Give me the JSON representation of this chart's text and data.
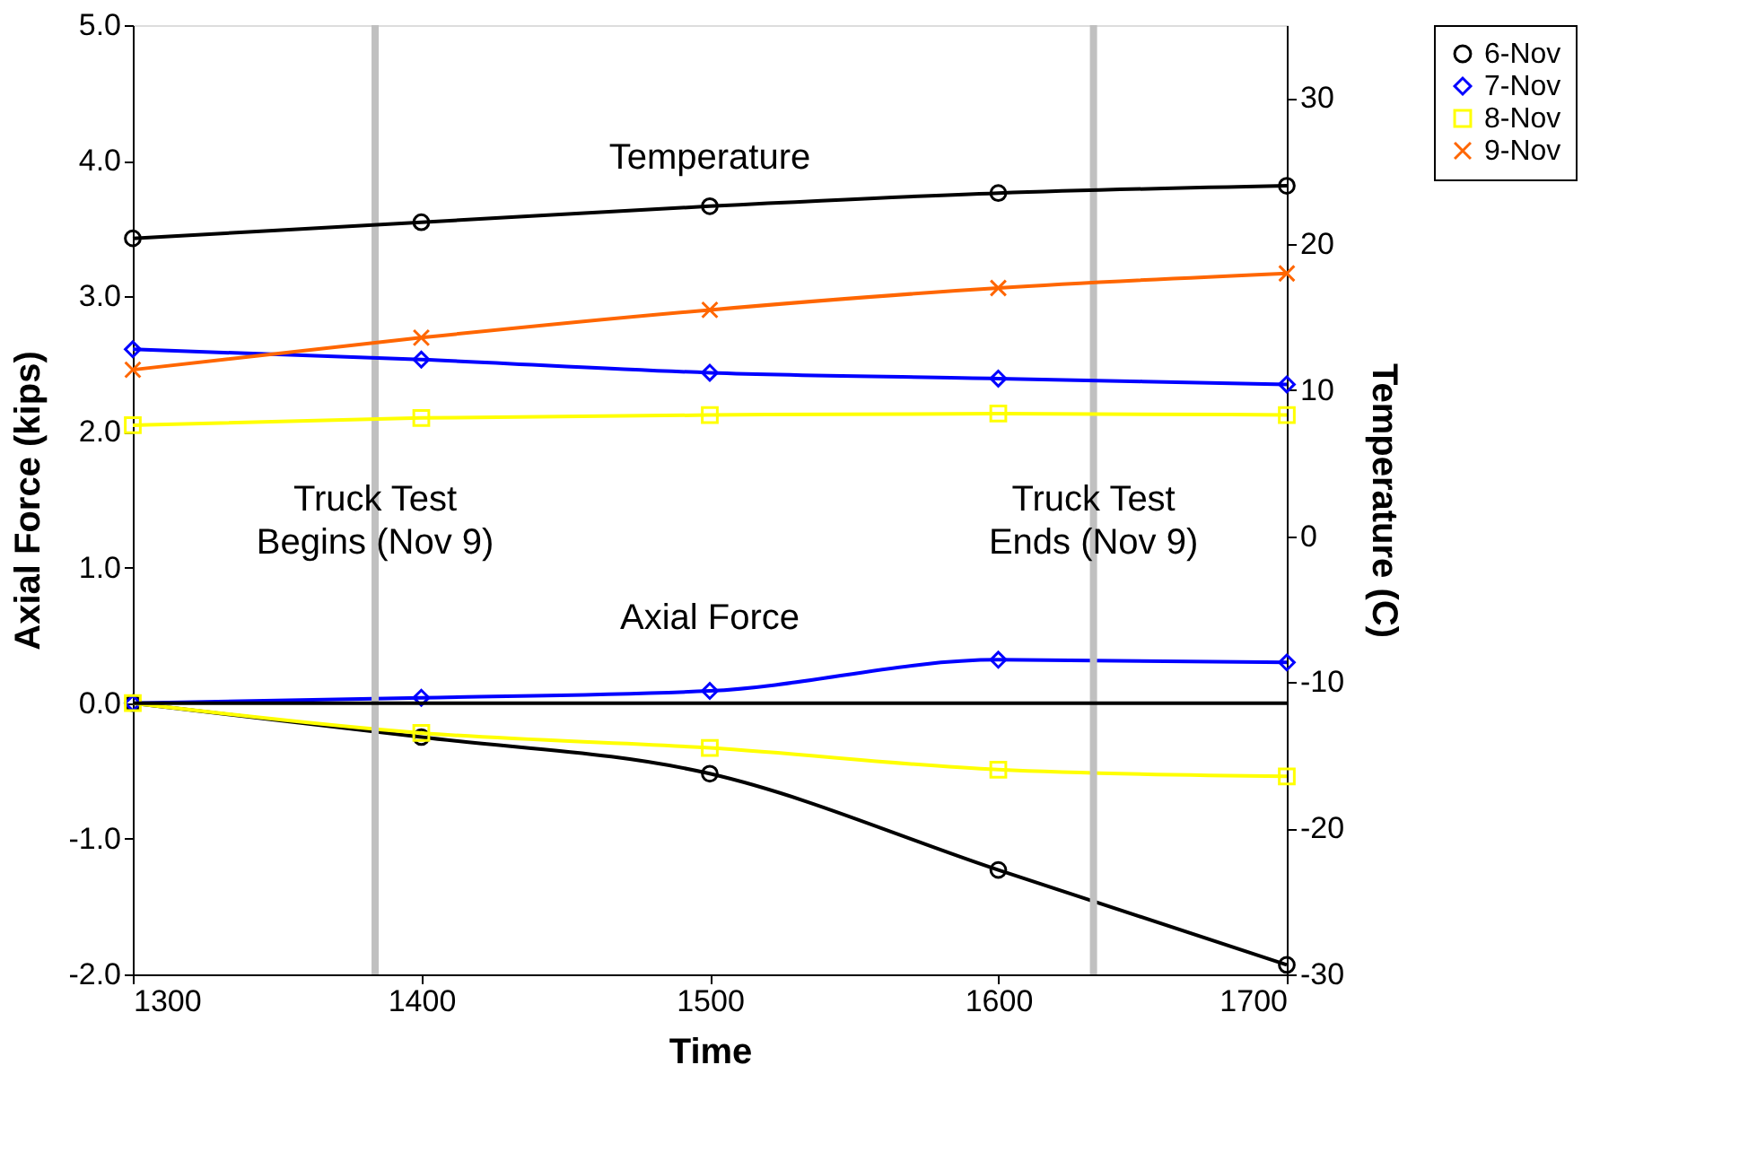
{
  "chart_data": {
    "type": "line",
    "xlabel": "Time",
    "ylabel": "Axial Force (kips)",
    "y2label": "Temperature (C)",
    "x": [
      1300,
      1400,
      1500,
      1600,
      1700
    ],
    "xlim": [
      1300,
      1700
    ],
    "xticks": [
      1300,
      1400,
      1500,
      1600,
      1700
    ],
    "ylim": [
      -2,
      5
    ],
    "yticks": [
      {
        "value": -2,
        "label": "-2.0"
      },
      {
        "value": -1,
        "label": "-1.0"
      },
      {
        "value": 0,
        "label": "0.0"
      },
      {
        "value": 1,
        "label": "1.0"
      },
      {
        "value": 2,
        "label": "2.0"
      },
      {
        "value": 3,
        "label": "3.0"
      },
      {
        "value": 4,
        "label": "4.0"
      },
      {
        "value": 5,
        "label": "5.0"
      }
    ],
    "y2lim": [
      -30,
      35
    ],
    "y2ticks": [
      -30,
      -20,
      -10,
      0,
      10,
      20,
      30
    ],
    "series": [
      {
        "name": "6-Nov",
        "color": "#000000",
        "marker": "circle",
        "axis": "y2",
        "values": [
          20.4,
          21.5,
          22.6,
          23.5,
          24.0
        ]
      },
      {
        "name": "7-Nov",
        "color": "#0000ff",
        "marker": "diamond",
        "axis": "y2",
        "values": [
          12.8,
          12.1,
          11.2,
          10.8,
          10.4
        ]
      },
      {
        "name": "8-Nov",
        "color": "#ffff00",
        "marker": "square",
        "axis": "y2",
        "values": [
          7.6,
          8.1,
          8.3,
          8.4,
          8.3
        ]
      },
      {
        "name": "9-Nov",
        "color": "#ff6600",
        "marker": "cross",
        "axis": "y2",
        "values": [
          11.4,
          13.6,
          15.5,
          17.0,
          18.0
        ]
      },
      {
        "color": "#000000",
        "marker": "circle",
        "values": [
          0,
          -0.25,
          -0.52,
          -1.23,
          -1.93
        ]
      },
      {
        "color": "#0000ff",
        "marker": "diamond",
        "values": [
          0,
          0.04,
          0.09,
          0.32,
          0.3
        ]
      },
      {
        "color": "#ffff00",
        "marker": "square",
        "values": [
          0,
          -0.22,
          -0.33,
          -0.49,
          -0.54
        ]
      }
    ],
    "ref_lines": [
      {
        "axis": "x",
        "value": 1384,
        "label": "Truck Test\nBegins (Nov 9)",
        "color": "#c0c0c0"
      },
      {
        "axis": "x",
        "value": 1633,
        "label": "Truck Test\nEnds (Nov 9)",
        "color": "#c0c0c0"
      },
      {
        "axis": "y",
        "value": 0,
        "color": "#000000"
      }
    ],
    "annotations": [
      "Temperature",
      "Axial Force"
    ],
    "legend": "right",
    "grid": false
  }
}
